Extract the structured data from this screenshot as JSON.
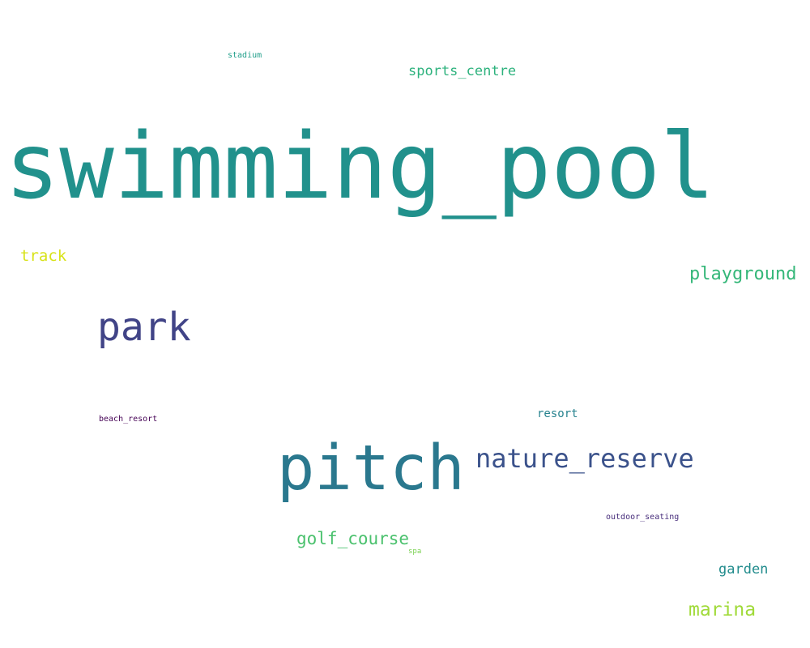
{
  "words": {
    "swimming_pool": {
      "text": "swimming_pool",
      "color": "#21918c"
    },
    "pitch": {
      "text": "pitch",
      "color": "#2a788e"
    },
    "park": {
      "text": "park",
      "color": "#414487"
    },
    "nature_reserve": {
      "text": "nature_reserve",
      "color": "#3b528b"
    },
    "playground": {
      "text": "playground",
      "color": "#35b779"
    },
    "marina": {
      "text": "marina",
      "color": "#a0da39"
    },
    "golf_course": {
      "text": "golf_course",
      "color": "#4ac16d"
    },
    "sports_centre": {
      "text": "sports_centre",
      "color": "#2db27d"
    },
    "track": {
      "text": "track",
      "color": "#d8e219"
    },
    "garden": {
      "text": "garden",
      "color": "#228c8d"
    },
    "resort": {
      "text": "resort",
      "color": "#26828e"
    },
    "beach_resort": {
      "text": "beach_resort",
      "color": "#440154"
    },
    "outdoor_seating": {
      "text": "outdoor_seating",
      "color": "#472d7b"
    },
    "stadium": {
      "text": "stadium",
      "color": "#1f9e89"
    },
    "spa": {
      "text": "spa",
      "color": "#7ad151"
    }
  }
}
